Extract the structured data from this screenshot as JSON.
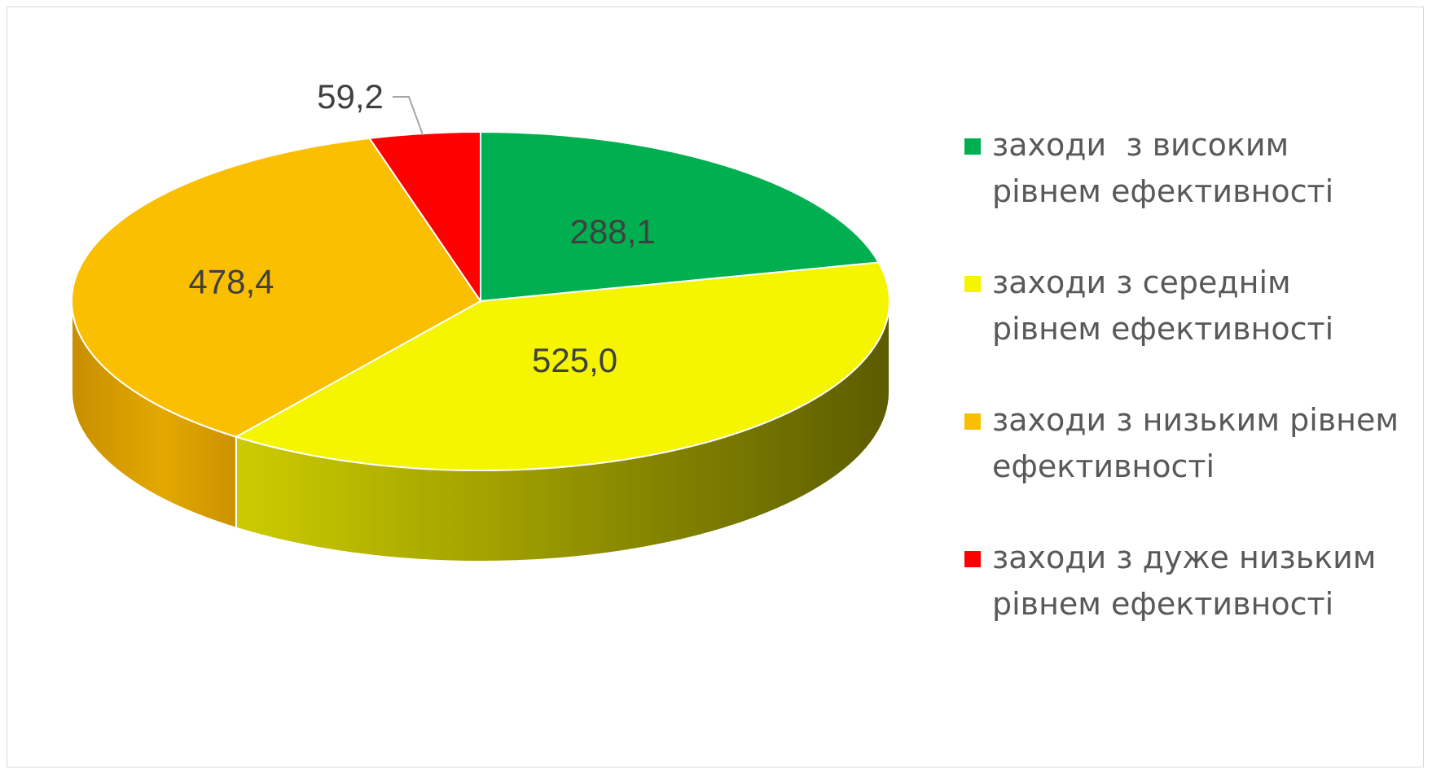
{
  "chart_data": {
    "type": "pie",
    "title": "",
    "slices": [
      {
        "label": "заходи  з високим рівнем ефективності",
        "value": 288.1,
        "display": "288,1",
        "color": "#00b050"
      },
      {
        "label": "заходи з середнім рівнем ефективності",
        "value": 525.0,
        "display": "525,0",
        "color": "#f5f500"
      },
      {
        "label": "заходи з низьким рівнем ефективності",
        "value": 478.4,
        "display": "478,4",
        "color": "#fabf00"
      },
      {
        "label": "заходи з дуже низьким рівнем ефективності",
        "value": 59.2,
        "display": "59,2",
        "color": "#ff0000"
      }
    ],
    "legend_position": "right",
    "style": "3d-pie"
  }
}
